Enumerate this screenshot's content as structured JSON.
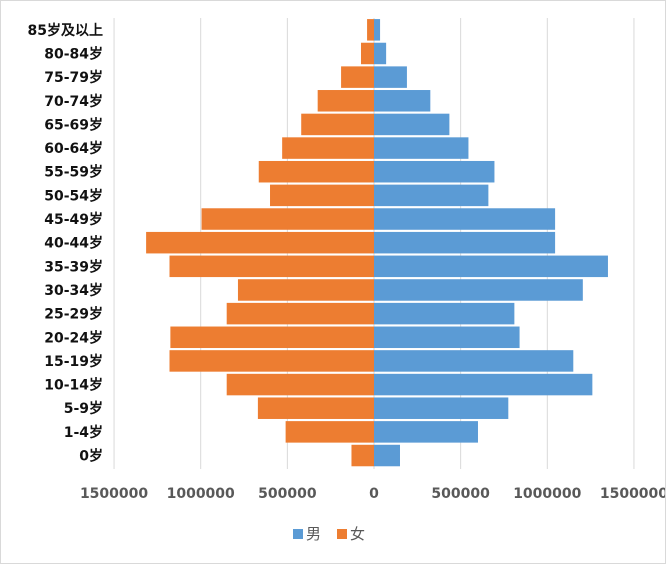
{
  "chart_data": {
    "type": "bar",
    "orientation": "horizontal",
    "layout": "population-pyramid",
    "categories": [
      "85岁及以上",
      "80-84岁",
      "75-79岁",
      "70-74岁",
      "65-69岁",
      "60-64岁",
      "55-59岁",
      "50-54岁",
      "45-49岁",
      "40-44岁",
      "35-39岁",
      "30-34岁",
      "25-29岁",
      "20-24岁",
      "15-19岁",
      "10-14岁",
      "5-9岁",
      "1-4岁",
      "0岁"
    ],
    "series": [
      {
        "name": "男",
        "color": "#5b9bd5",
        "side": "right",
        "values": [
          35000,
          70000,
          190000,
          325000,
          435000,
          545000,
          695000,
          660000,
          1045000,
          1045000,
          1350000,
          1205000,
          810000,
          840000,
          1150000,
          1260000,
          775000,
          600000,
          150000
        ]
      },
      {
        "name": "女",
        "color": "#ed7d31",
        "side": "left",
        "values": [
          40000,
          75000,
          190000,
          325000,
          420000,
          530000,
          665000,
          600000,
          995000,
          1315000,
          1180000,
          785000,
          850000,
          1175000,
          1180000,
          850000,
          670000,
          510000,
          130000
        ]
      }
    ],
    "x_tick_labels": [
      "1500000",
      "1000000",
      "500000",
      "0",
      "500000",
      "1000000",
      "1500000"
    ],
    "xlim": [
      -1500000,
      1500000
    ],
    "grid": "vertical",
    "legend_position": "bottom-center",
    "title": "",
    "xlabel": "",
    "ylabel": ""
  }
}
